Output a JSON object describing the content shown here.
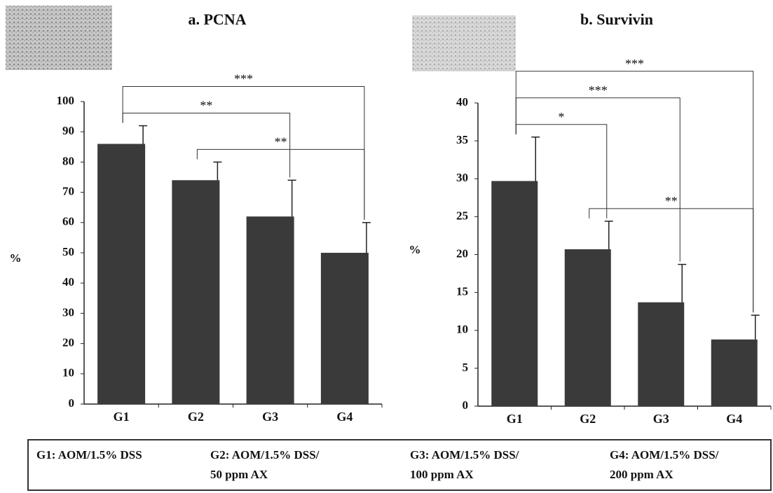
{
  "chart_data": [
    {
      "type": "bar",
      "title": "a. PCNA",
      "ylabel": "%",
      "color": "#3a3a3a",
      "categories": [
        "G1",
        "G2",
        "G3",
        "G4"
      ],
      "values": [
        86,
        74,
        62,
        50
      ],
      "errors": [
        6,
        6,
        12,
        10
      ],
      "ylim": [
        0,
        100
      ],
      "yticks": [
        0,
        10,
        20,
        30,
        40,
        50,
        60,
        70,
        80,
        90,
        100
      ],
      "brackets": [
        {
          "between": [
            "G2",
            "G4"
          ],
          "label": "**"
        },
        {
          "between": [
            "G1",
            "G3"
          ],
          "label": "**"
        },
        {
          "between": [
            "G1",
            "G4"
          ],
          "label": "***"
        }
      ]
    },
    {
      "type": "bar",
      "title": "b. Survivin",
      "ylabel": "%",
      "color": "#3a3a3a",
      "categories": [
        "G1",
        "G2",
        "G3",
        "G4"
      ],
      "values": [
        29.7,
        20.7,
        13.7,
        8.8
      ],
      "errors": [
        5.8,
        3.7,
        5,
        3.2
      ],
      "ylim": [
        0,
        40
      ],
      "yticks": [
        0,
        5,
        10,
        15,
        20,
        25,
        30,
        35,
        40
      ],
      "brackets": [
        {
          "between": [
            "G2",
            "G4"
          ],
          "label": "**"
        },
        {
          "between": [
            "G1",
            "G2"
          ],
          "label": "*"
        },
        {
          "between": [
            "G1",
            "G3"
          ],
          "label": "***"
        },
        {
          "between": [
            "G1",
            "G4"
          ],
          "label": "***"
        }
      ]
    }
  ],
  "legend_box": [
    [
      "G1: AOM/1.5% DSS"
    ],
    [
      "G2: AOM/1.5% DSS/",
      "50 ppm AX"
    ],
    [
      "G3: AOM/1.5% DSS/",
      "100 ppm AX"
    ],
    [
      "G4: AOM/1.5% DSS/",
      "200 ppm AX"
    ]
  ]
}
